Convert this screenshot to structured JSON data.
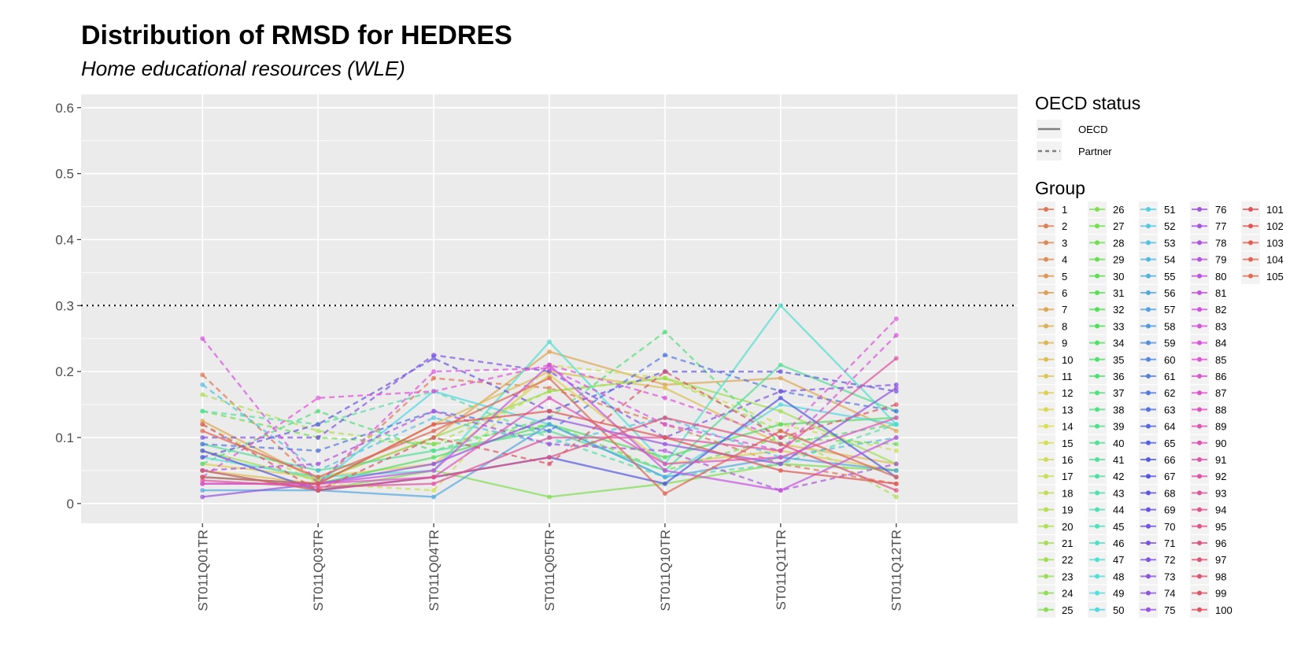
{
  "chart_data": {
    "type": "line",
    "title": "Distribution of RMSD for HEDRES",
    "subtitle": "Home educational resources (WLE)",
    "xlabel": "",
    "ylabel": "",
    "categories": [
      "ST011Q01TR",
      "ST011Q03TR",
      "ST011Q04TR",
      "ST011Q05TR",
      "ST011Q10TR",
      "ST011Q11TR",
      "ST011Q12TR"
    ],
    "ylim": [
      -0.03,
      0.62
    ],
    "y_ticks": [
      0,
      0.1,
      0.2,
      0.3,
      0.4,
      0.5,
      0.6
    ],
    "y_tick_labels": [
      "0",
      "0.1",
      "0.2",
      "0.3",
      "0.4",
      "0.5",
      "0.6"
    ],
    "threshold": 0.3,
    "grid": true,
    "legend_position": "right",
    "linetype_legend": {
      "title": "OECD status",
      "items": [
        {
          "label": "OECD",
          "dash": "solid"
        },
        {
          "label": "Partner",
          "dash": "dashed"
        }
      ]
    },
    "group_legend_title": "Group",
    "group_count": 105,
    "group_labels": [
      "1",
      "2",
      "3",
      "4",
      "5",
      "6",
      "7",
      "8",
      "9",
      "10",
      "11",
      "12",
      "13",
      "14",
      "15",
      "16",
      "17",
      "18",
      "19",
      "20",
      "21",
      "22",
      "23",
      "24",
      "25",
      "26",
      "27",
      "28",
      "29",
      "30",
      "31",
      "32",
      "33",
      "34",
      "35",
      "36",
      "37",
      "38",
      "39",
      "40",
      "41",
      "42",
      "43",
      "44",
      "45",
      "46",
      "47",
      "48",
      "49",
      "50",
      "51",
      "52",
      "53",
      "54",
      "55",
      "56",
      "57",
      "58",
      "59",
      "60",
      "61",
      "62",
      "63",
      "64",
      "65",
      "66",
      "67",
      "68",
      "69",
      "70",
      "71",
      "72",
      "73",
      "74",
      "75",
      "76",
      "77",
      "78",
      "79",
      "80",
      "81",
      "82",
      "83",
      "84",
      "85",
      "86",
      "87",
      "88",
      "89",
      "90",
      "91",
      "92",
      "93",
      "94",
      "95",
      "96",
      "97",
      "98",
      "99",
      "100",
      "101",
      "102",
      "103",
      "104",
      "105"
    ],
    "series": [
      {
        "group": 1,
        "status": "Partner",
        "values": [
          0.195,
          0.03,
          0.19,
          0.175,
          0.12,
          0.06,
          0.03
        ]
      },
      {
        "group": 7,
        "status": "OECD",
        "values": [
          0.125,
          0.035,
          0.1,
          0.23,
          0.18,
          0.19,
          0.11
        ]
      },
      {
        "group": 10,
        "status": "OECD",
        "values": [
          0.05,
          0.03,
          0.12,
          0.2,
          0.175,
          0.09,
          0.06
        ]
      },
      {
        "group": 12,
        "status": "OECD",
        "values": [
          0.06,
          0.04,
          0.06,
          0.195,
          0.06,
          0.08,
          0.05
        ]
      },
      {
        "group": 16,
        "status": "Partner",
        "values": [
          0.12,
          0.03,
          0.02,
          0.21,
          0.19,
          0.12,
          0.08
        ]
      },
      {
        "group": 20,
        "status": "Partner",
        "values": [
          0.165,
          0.11,
          0.09,
          0.17,
          0.19,
          0.11,
          0.01
        ]
      },
      {
        "group": 22,
        "status": "OECD",
        "values": [
          0.08,
          0.035,
          0.1,
          0.17,
          0.19,
          0.14,
          0.06
        ]
      },
      {
        "group": 26,
        "status": "OECD",
        "values": [
          0.05,
          0.02,
          0.05,
          0.01,
          0.03,
          0.06,
          0.05
        ]
      },
      {
        "group": 28,
        "status": "Partner",
        "values": [
          0.14,
          0.1,
          0.09,
          0.12,
          0.05,
          0.1,
          0.09
        ]
      },
      {
        "group": 33,
        "status": "OECD",
        "values": [
          0.04,
          0.03,
          0.07,
          0.12,
          0.07,
          0.12,
          0.13
        ]
      },
      {
        "group": 37,
        "status": "Partner",
        "values": [
          0.06,
          0.14,
          0.08,
          0.13,
          0.26,
          0.09,
          0.12
        ]
      },
      {
        "group": 40,
        "status": "OECD",
        "values": [
          0.09,
          0.05,
          0.08,
          0.11,
          0.05,
          0.21,
          0.14
        ]
      },
      {
        "group": 42,
        "status": "Partner",
        "values": [
          0.14,
          0.12,
          0.17,
          0.1,
          0.04,
          0.06,
          0.12
        ]
      },
      {
        "group": 47,
        "status": "OECD",
        "values": [
          0.07,
          0.04,
          0.05,
          0.245,
          0.06,
          0.3,
          0.12
        ]
      },
      {
        "group": 50,
        "status": "OECD",
        "values": [
          0.04,
          0.03,
          0.17,
          0.12,
          0.04,
          0.15,
          0.12
        ]
      },
      {
        "group": 53,
        "status": "Partner",
        "values": [
          0.18,
          0.05,
          0.13,
          0.09,
          0.13,
          0.07,
          0.1
        ]
      },
      {
        "group": 56,
        "status": "OECD",
        "values": [
          0.02,
          0.02,
          0.01,
          0.12,
          0.04,
          0.07,
          0.05
        ]
      },
      {
        "group": 62,
        "status": "Partner",
        "values": [
          0.09,
          0.08,
          0.14,
          0.11,
          0.225,
          0.17,
          0.14
        ]
      },
      {
        "group": 66,
        "status": "OECD",
        "values": [
          0.08,
          0.02,
          0.04,
          0.07,
          0.03,
          0.16,
          0.04
        ]
      },
      {
        "group": 69,
        "status": "Partner",
        "values": [
          0.07,
          0.12,
          0.22,
          0.14,
          0.2,
          0.2,
          0.17
        ]
      },
      {
        "group": 72,
        "status": "Partner",
        "values": [
          0.1,
          0.1,
          0.225,
          0.2,
          0.1,
          0.17,
          0.18
        ]
      },
      {
        "group": 75,
        "status": "OECD",
        "values": [
          0.01,
          0.03,
          0.06,
          0.13,
          0.09,
          0.06,
          0.175
        ]
      },
      {
        "group": 78,
        "status": "Partner",
        "values": [
          0.05,
          0.06,
          0.14,
          0.09,
          0.08,
          0.02,
          0.06
        ]
      },
      {
        "group": 81,
        "status": "OECD",
        "values": [
          0.03,
          0.03,
          0.05,
          0.21,
          0.05,
          0.02,
          0.1
        ]
      },
      {
        "group": 83,
        "status": "Partner",
        "values": [
          0.25,
          0.03,
          0.2,
          0.205,
          0.12,
          0.08,
          0.255
        ]
      },
      {
        "group": 85,
        "status": "Partner",
        "values": [
          0.04,
          0.16,
          0.17,
          0.21,
          0.16,
          0.1,
          0.28
        ]
      },
      {
        "group": 88,
        "status": "OECD",
        "values": [
          0.03,
          0.03,
          0.04,
          0.16,
          0.06,
          0.07,
          0.13
        ]
      },
      {
        "group": 92,
        "status": "OECD",
        "values": [
          0.035,
          0.025,
          0.03,
          0.1,
          0.1,
          0.08,
          0.22
        ]
      },
      {
        "group": 96,
        "status": "OECD",
        "values": [
          0.05,
          0.02,
          0.04,
          0.07,
          0.13,
          0.09,
          0.02
        ]
      },
      {
        "group": 99,
        "status": "Partner",
        "values": [
          0.12,
          0.02,
          0.1,
          0.06,
          0.2,
          0.1,
          0.15
        ]
      },
      {
        "group": 102,
        "status": "OECD",
        "values": [
          0.04,
          0.03,
          0.12,
          0.14,
          0.1,
          0.05,
          0.03
        ]
      },
      {
        "group": 104,
        "status": "OECD",
        "values": [
          0.11,
          0.04,
          0.11,
          0.19,
          0.015,
          0.11,
          0.04
        ]
      }
    ]
  }
}
